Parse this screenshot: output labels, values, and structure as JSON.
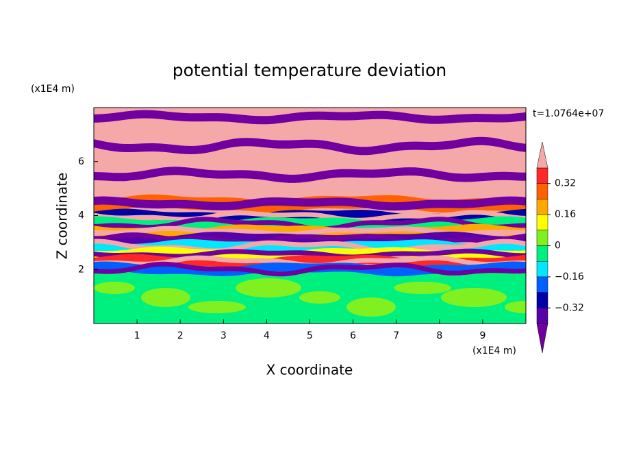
{
  "chart_data": {
    "type": "contour",
    "title": "potential temperature deviation",
    "x_label": "X coordinate",
    "y_label": "Z coordinate",
    "x_unit": "(x1E4 m)",
    "y_unit": "(x1E4 m)",
    "time_label": "t=1.0764e+07",
    "xlim": [
      0,
      10
    ],
    "ylim": [
      0,
      8
    ],
    "xticks": [
      1,
      2,
      3,
      4,
      5,
      6,
      7,
      8,
      9
    ],
    "yticks": [
      2,
      4,
      6
    ],
    "levels": [
      -0.4,
      -0.32,
      -0.24,
      -0.16,
      -0.08,
      0,
      0.08,
      0.16,
      0.24,
      0.32,
      0.4
    ],
    "colors": [
      "#5a00a8",
      "#0000a8",
      "#0060ff",
      "#00e8ff",
      "#00f080",
      "#80f020",
      "#ffff00",
      "#ffa800",
      "#ff6000",
      "#ff2828"
    ],
    "under_color": "#7000a0",
    "over_color": "#f4a8a8",
    "colorbar_ticks": [
      0.32,
      0.16,
      0,
      {
        "value": -0.16,
        "label": "−0.16"
      },
      {
        "value": -0.32,
        "label": "−0.32"
      }
    ]
  }
}
